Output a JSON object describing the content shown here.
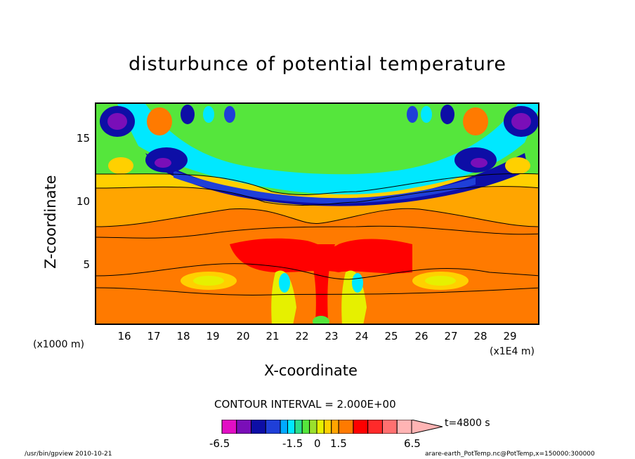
{
  "chart_data": {
    "type": "heatmap",
    "title": "disturbunce of potential temperature",
    "xlabel": "X-coordinate",
    "ylabel": "Z-coordinate",
    "x_unit_note": "(x1000 m)",
    "x_scale_note": "(x1E4 m)",
    "xlim": [
      15.1,
      30.0
    ],
    "ylim": [
      0,
      17.5
    ],
    "x_ticks": [
      "16",
      "17",
      "18",
      "19",
      "20",
      "21",
      "22",
      "23",
      "24",
      "25",
      "26",
      "27",
      "28",
      "29"
    ],
    "y_ticks": [
      "5",
      "10",
      "15"
    ],
    "contour_interval": "CONTOUR INTERVAL = 2.000E+00",
    "colorbar": {
      "levels": [
        -6.5,
        -5.5,
        -4.5,
        -3.5,
        -2.5,
        -2.0,
        -1.5,
        -1.0,
        -0.5,
        0,
        0.5,
        1.0,
        1.5,
        2.5,
        3.5,
        4.5,
        5.5,
        6.5
      ],
      "labels": [
        "-6.5",
        "-1.5",
        "0",
        "1.5",
        "6.5"
      ],
      "colors": [
        "#e20ec4",
        "#7a0eb8",
        "#0d0ea6",
        "#1f3fd8",
        "#00aaff",
        "#00e8ff",
        "#2adf8c",
        "#55e63c",
        "#9be02d",
        "#e6f000",
        "#ffd000",
        "#ffa500",
        "#ff7a00",
        "#ff0000",
        "#ff2a2a",
        "#ff7070",
        "#ffb4b4"
      ]
    },
    "time": "t=4800 s"
  },
  "footer": {
    "left": "/usr/bin/gpview  2010-10-21",
    "right": "arare-earth_PotTemp.nc@PotTemp,x=150000:300000"
  }
}
